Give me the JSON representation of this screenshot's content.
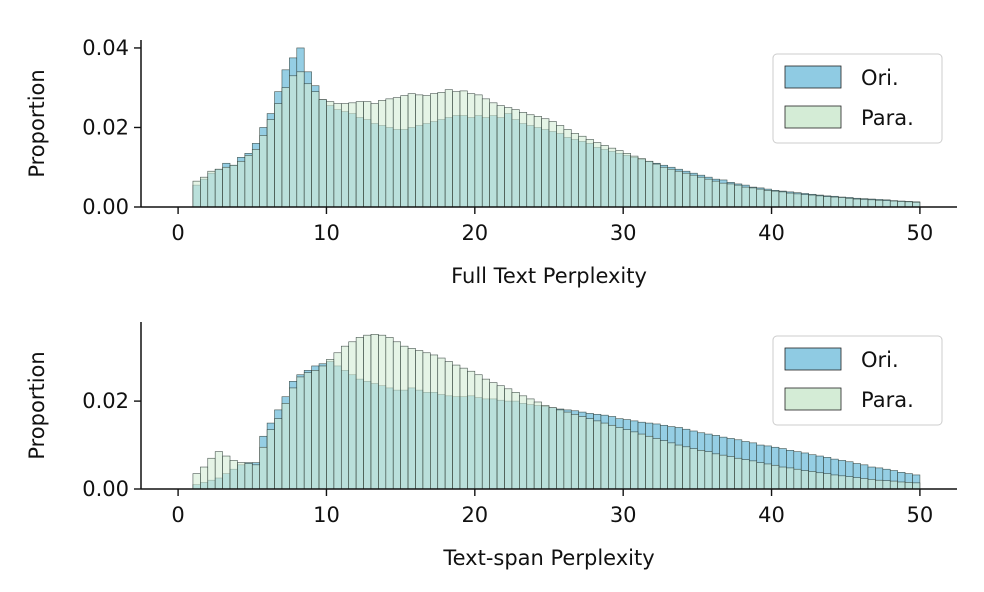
{
  "chart_data": [
    {
      "type": "histogram",
      "xlabel": "Full Text Perplexity",
      "ylabel": "Proportion",
      "xlim": [
        -2.5,
        52.5
      ],
      "ylim": [
        0,
        0.042
      ],
      "xticks": [
        0,
        10,
        20,
        30,
        40,
        50
      ],
      "xtick_labels": [
        "0",
        "10",
        "20",
        "30",
        "40",
        "50"
      ],
      "yticks": [
        0,
        0.02,
        0.04
      ],
      "ytick_labels": [
        "0.00",
        "0.02",
        "0.04"
      ],
      "grid": false,
      "legend_position": "upper right",
      "bin_width": 0.5,
      "bin_start": 1.0,
      "series": [
        {
          "name": "Ori.",
          "color": "#8fcbe3",
          "values": [
            0.0055,
            0.007,
            0.0085,
            0.0095,
            0.011,
            0.0105,
            0.0125,
            0.0135,
            0.016,
            0.02,
            0.0235,
            0.029,
            0.0345,
            0.0375,
            0.04,
            0.034,
            0.0305,
            0.027,
            0.0255,
            0.0245,
            0.024,
            0.0235,
            0.0225,
            0.022,
            0.021,
            0.0205,
            0.02,
            0.0195,
            0.0195,
            0.02,
            0.0205,
            0.021,
            0.0215,
            0.022,
            0.0225,
            0.023,
            0.023,
            0.0225,
            0.023,
            0.0225,
            0.023,
            0.0225,
            0.0235,
            0.022,
            0.021,
            0.0205,
            0.02,
            0.0195,
            0.019,
            0.0185,
            0.0175,
            0.017,
            0.0165,
            0.016,
            0.015,
            0.0145,
            0.014,
            0.0135,
            0.013,
            0.0125,
            0.012,
            0.0115,
            0.011,
            0.0105,
            0.01,
            0.0095,
            0.009,
            0.0085,
            0.008,
            0.0075,
            0.007,
            0.0068,
            0.0062,
            0.0058,
            0.0055,
            0.005,
            0.0048,
            0.0045,
            0.0042,
            0.004,
            0.0038,
            0.0036,
            0.0034,
            0.0032,
            0.003,
            0.0028,
            0.0027,
            0.0025,
            0.0024,
            0.0022,
            0.0021,
            0.002,
            0.0019,
            0.0018,
            0.0016,
            0.0015,
            0.0014,
            0.0013
          ]
        },
        {
          "name": "Para.",
          "color": "#d4ecd6",
          "values": [
            0.0065,
            0.0075,
            0.009,
            0.0095,
            0.01,
            0.0105,
            0.0115,
            0.013,
            0.0145,
            0.018,
            0.022,
            0.026,
            0.03,
            0.033,
            0.034,
            0.031,
            0.029,
            0.027,
            0.0265,
            0.026,
            0.026,
            0.0262,
            0.0265,
            0.0265,
            0.026,
            0.0268,
            0.0272,
            0.0275,
            0.028,
            0.0285,
            0.0282,
            0.028,
            0.0285,
            0.0288,
            0.0295,
            0.029,
            0.0292,
            0.0285,
            0.0282,
            0.0272,
            0.0262,
            0.0255,
            0.025,
            0.0245,
            0.0238,
            0.0232,
            0.0228,
            0.0222,
            0.0215,
            0.0205,
            0.0195,
            0.0185,
            0.0178,
            0.017,
            0.0162,
            0.0155,
            0.0148,
            0.0142,
            0.0135,
            0.0128,
            0.0122,
            0.0115,
            0.0108,
            0.01,
            0.0095,
            0.009,
            0.0085,
            0.008,
            0.0075,
            0.007,
            0.0065,
            0.006,
            0.0058,
            0.0055,
            0.005,
            0.0048,
            0.0045,
            0.0042,
            0.004,
            0.0038,
            0.0035,
            0.0033,
            0.0031,
            0.003,
            0.0028,
            0.0026,
            0.0025,
            0.0024,
            0.0022,
            0.002,
            0.0019,
            0.0018,
            0.0017,
            0.0016,
            0.0015,
            0.0014,
            0.0013,
            0.0012
          ]
        }
      ]
    },
    {
      "type": "histogram",
      "xlabel": "Text-span Perplexity",
      "ylabel": "Proportion",
      "xlim": [
        -2.5,
        52.5
      ],
      "ylim": [
        0,
        0.038
      ],
      "xticks": [
        0,
        10,
        20,
        30,
        40,
        50
      ],
      "xtick_labels": [
        "0",
        "10",
        "20",
        "30",
        "40",
        "50"
      ],
      "yticks": [
        0,
        0.02
      ],
      "ytick_labels": [
        "0.00",
        "0.02"
      ],
      "grid": false,
      "legend_position": "upper right",
      "bin_width": 0.5,
      "bin_start": 1.0,
      "series": [
        {
          "name": "Ori.",
          "color": "#8fcbe3",
          "values": [
            0.001,
            0.0015,
            0.002,
            0.0025,
            0.0035,
            0.0045,
            0.0055,
            0.006,
            0.006,
            0.012,
            0.015,
            0.018,
            0.021,
            0.0245,
            0.026,
            0.027,
            0.028,
            0.0285,
            0.029,
            0.028,
            0.027,
            0.026,
            0.025,
            0.0245,
            0.024,
            0.0235,
            0.023,
            0.0225,
            0.0225,
            0.023,
            0.0225,
            0.022,
            0.022,
            0.0215,
            0.0212,
            0.021,
            0.021,
            0.0212,
            0.0208,
            0.0205,
            0.0205,
            0.0202,
            0.02,
            0.02,
            0.0195,
            0.0192,
            0.019,
            0.0188,
            0.0185,
            0.0182,
            0.018,
            0.0178,
            0.0175,
            0.0172,
            0.017,
            0.0168,
            0.0165,
            0.016,
            0.0158,
            0.0155,
            0.0152,
            0.015,
            0.0148,
            0.0145,
            0.0142,
            0.014,
            0.0136,
            0.0132,
            0.0128,
            0.0125,
            0.0122,
            0.0118,
            0.0115,
            0.0112,
            0.0108,
            0.0105,
            0.01,
            0.0098,
            0.0095,
            0.0092,
            0.0088,
            0.0085,
            0.0082,
            0.0078,
            0.0075,
            0.0072,
            0.0068,
            0.0065,
            0.0062,
            0.0058,
            0.0055,
            0.005,
            0.0048,
            0.0045,
            0.0042,
            0.0038,
            0.0035,
            0.0032
          ]
        },
        {
          "name": "Para.",
          "color": "#d4ecd6",
          "values": [
            0.0035,
            0.005,
            0.007,
            0.0085,
            0.0075,
            0.0065,
            0.006,
            0.0058,
            0.0055,
            0.0095,
            0.0135,
            0.016,
            0.0195,
            0.023,
            0.0255,
            0.0265,
            0.027,
            0.028,
            0.0295,
            0.031,
            0.0325,
            0.0335,
            0.0345,
            0.035,
            0.0352,
            0.035,
            0.0345,
            0.0335,
            0.0325,
            0.032,
            0.0315,
            0.031,
            0.0305,
            0.0298,
            0.029,
            0.0282,
            0.0275,
            0.0268,
            0.026,
            0.025,
            0.0242,
            0.0235,
            0.0228,
            0.022,
            0.0212,
            0.0205,
            0.0198,
            0.019,
            0.0185,
            0.018,
            0.0175,
            0.017,
            0.0165,
            0.016,
            0.0155,
            0.015,
            0.0145,
            0.014,
            0.0135,
            0.013,
            0.0125,
            0.012,
            0.0115,
            0.011,
            0.0105,
            0.01,
            0.0096,
            0.0092,
            0.0088,
            0.0085,
            0.008,
            0.0077,
            0.0074,
            0.007,
            0.0067,
            0.0064,
            0.006,
            0.0057,
            0.0054,
            0.005,
            0.0048,
            0.0045,
            0.0042,
            0.004,
            0.0037,
            0.0035,
            0.0032,
            0.003,
            0.0028,
            0.0026,
            0.0024,
            0.0022,
            0.002,
            0.0019,
            0.0018,
            0.0016,
            0.0015,
            0.0014
          ]
        }
      ]
    }
  ]
}
